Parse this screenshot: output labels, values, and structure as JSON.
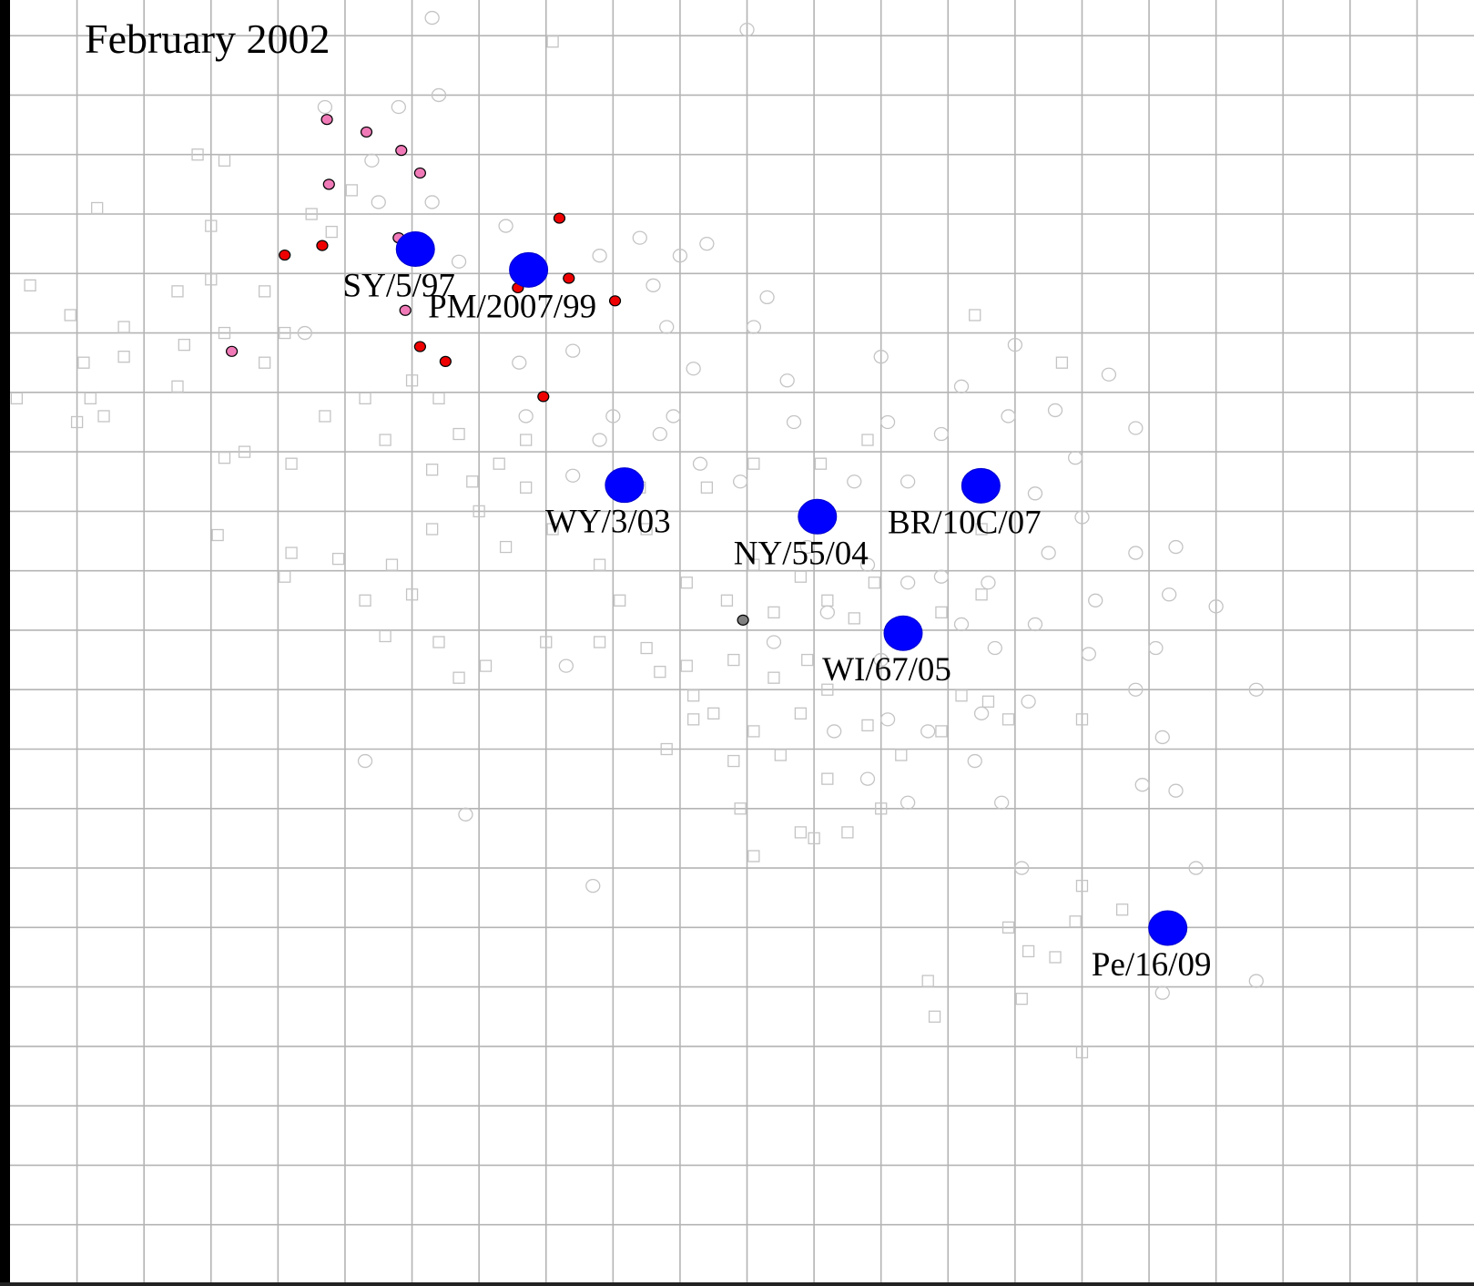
{
  "chart_data": {
    "type": "scatter",
    "title": "February 2002",
    "xlim": [
      0,
      21.85
    ],
    "ylim": [
      0,
      21.6
    ],
    "xticks": [
      1,
      2,
      3,
      4,
      5,
      6,
      7,
      8,
      9,
      10,
      11,
      12,
      13,
      14,
      15,
      16,
      17,
      18,
      19,
      20,
      21
    ],
    "yticks": [
      1,
      2,
      3,
      4,
      5,
      6,
      7,
      8,
      9,
      10,
      11,
      12,
      13,
      14,
      15,
      16,
      17,
      18,
      19,
      20,
      21
    ],
    "grid": true,
    "series": [
      {
        "marker": "square",
        "color": "#c4c4c4",
        "filled": false,
        "x": [
          8.1,
          2.8,
          3.2,
          1.3,
          3.0,
          4.8,
          5.1,
          4.5,
          3.0,
          2.5,
          3.8,
          0.3,
          0.9,
          1.7,
          1.1,
          1.7,
          2.6,
          3.2,
          4.1,
          3.8,
          2.5,
          0.1,
          1.2,
          1.0,
          1.4,
          3.2,
          3.5,
          4.2,
          4.7,
          5.3,
          6.0,
          6.4,
          5.6,
          6.3,
          6.7,
          7.3,
          7.7,
          7.0,
          7.4,
          8.1,
          8.8,
          9.5,
          10.1,
          10.7,
          11.1,
          11.4,
          11.8,
          12.2,
          12.6,
          12.9,
          11.9,
          11.4,
          10.8,
          10.2,
          9.7,
          10.5,
          11.1,
          11.5,
          10.8,
          9.8,
          11.8,
          12.2,
          12.8,
          13.3,
          13.9,
          14.2,
          14.6,
          14.5,
          13.9,
          14.5,
          14.4,
          15.7,
          12.8,
          12.1,
          11.1,
          10.4,
          9.4,
          7.7,
          6.9,
          6.3,
          5.7,
          5.3,
          5.6,
          6.4,
          6.7,
          7.1,
          8.8,
          9.1,
          8.0,
          3.1,
          4.2,
          4.1,
          4.9,
          6.0,
          10.9,
          11.1,
          11.8,
          12.0,
          12.5,
          12.2,
          13.0,
          16.0,
          14.9,
          16.0,
          16.6,
          15.9,
          14.9,
          15.6,
          15.2,
          13.7,
          15.1,
          13.8,
          16.0,
          10.2,
          10.1,
          9.5
        ],
        "y": [
          20.9,
          19.0,
          18.9,
          18.1,
          17.8,
          17.7,
          18.4,
          18.0,
          16.9,
          16.7,
          16.7,
          16.8,
          16.3,
          16.1,
          15.5,
          15.6,
          15.8,
          16.0,
          16.0,
          15.5,
          15.1,
          14.9,
          14.9,
          14.5,
          14.6,
          13.9,
          14.0,
          13.8,
          14.6,
          14.9,
          15.2,
          14.9,
          14.2,
          13.7,
          14.3,
          13.8,
          14.2,
          13.0,
          12.4,
          12.7,
          12.1,
          12.7,
          11.8,
          11.5,
          12.1,
          11.3,
          11.9,
          11.5,
          11.2,
          11.8,
          10.5,
          10.2,
          10.5,
          9.9,
          10.3,
          9.6,
          9.3,
          8.9,
          8.8,
          9.0,
          9.6,
          10.0,
          9.4,
          8.9,
          9.3,
          9.9,
          9.8,
          11.6,
          11.3,
          12.7,
          16.3,
          15.5,
          14.2,
          13.8,
          13.8,
          13.4,
          13.4,
          13.4,
          13.5,
          12.7,
          12.1,
          11.5,
          10.9,
          10.8,
          10.2,
          10.4,
          10.8,
          11.5,
          10.8,
          12.6,
          12.3,
          11.9,
          12.2,
          11.6,
          8.0,
          7.2,
          7.6,
          7.5,
          7.6,
          8.5,
          8.0,
          9.5,
          9.5,
          6.7,
          6.3,
          6.1,
          6.0,
          5.5,
          5.6,
          5.1,
          4.8,
          4.5,
          3.9,
          9.5,
          10.4,
          10.7
        ]
      },
      {
        "marker": "circle",
        "color": "#c4c4c4",
        "filled": false,
        "x": [
          6.3,
          11.0,
          6.4,
          4.7,
          5.8,
          5.4,
          5.5,
          6.3,
          7.4,
          6.7,
          8.8,
          9.4,
          10.0,
          10.4,
          9.6,
          11.3,
          9.8,
          11.1,
          8.4,
          10.2,
          7.6,
          11.6,
          13.0,
          15.0,
          16.4,
          14.2,
          11.7,
          13.1,
          13.9,
          14.9,
          15.6,
          16.8,
          15.9,
          15.3,
          16.0,
          15.5,
          16.8,
          17.4,
          17.3,
          18.0,
          16.2,
          15.3,
          16.1,
          17.1,
          16.8,
          18.6,
          17.2,
          16.9,
          17.4,
          17.7,
          18.6,
          17.2,
          15.1,
          13.4,
          12.6,
          9.9,
          8.8,
          8.4,
          8.3,
          5.3,
          6.8,
          8.7,
          13.4,
          14.8,
          14.4,
          12.8,
          13.7,
          14.5,
          15.2,
          13.1,
          12.3,
          14.7,
          14.2,
          13.4,
          12.8,
          13.9,
          11.9,
          10.9,
          10.3,
          9.7,
          4.4,
          7.7,
          9.0,
          14.6,
          13.0,
          12.2,
          11.4
        ],
        "y": [
          21.3,
          21.1,
          20.0,
          19.8,
          19.8,
          18.9,
          18.2,
          18.2,
          17.8,
          17.2,
          17.3,
          17.6,
          17.3,
          17.5,
          16.8,
          16.6,
          16.1,
          16.1,
          15.7,
          15.4,
          15.5,
          15.2,
          15.6,
          15.8,
          15.3,
          15.1,
          14.5,
          14.5,
          14.3,
          14.6,
          14.7,
          14.4,
          13.9,
          13.3,
          12.9,
          12.3,
          12.3,
          12.4,
          11.6,
          11.4,
          11.5,
          11.1,
          10.6,
          10.7,
          10.0,
          10.0,
          9.2,
          8.4,
          8.3,
          7.0,
          5.1,
          4.9,
          7.0,
          13.5,
          13.5,
          14.6,
          14.2,
          13.6,
          10.4,
          8.8,
          7.9,
          6.7,
          8.1,
          8.1,
          8.8,
          8.5,
          9.3,
          9.6,
          9.8,
          9.5,
          9.3,
          10.7,
          11.1,
          11.8,
          12.1,
          11.9,
          12.4,
          13.5,
          13.8,
          14.3,
          16.0,
          14.6,
          14.6,
          11.8,
          10.5,
          11.3,
          10.8
        ]
      },
      {
        "marker": "dot",
        "color": "#ee0000",
        "filled": true,
        "x": [
          4.1,
          4.66,
          8.2,
          8.34,
          7.58,
          9.03,
          6.12,
          6.5,
          7.96
        ],
        "y": [
          17.31,
          17.47,
          17.93,
          16.92,
          16.76,
          16.54,
          15.77,
          15.52,
          14.93
        ]
      },
      {
        "marker": "dot",
        "color": "#f07ab8",
        "filled": true,
        "x": [
          4.73,
          5.32,
          5.84,
          6.12,
          4.76,
          5.8,
          5.9,
          3.31
        ],
        "y": [
          19.59,
          19.38,
          19.07,
          18.69,
          18.5,
          17.6,
          16.38,
          15.69
        ]
      },
      {
        "marker": "dot",
        "color": "#808080",
        "filled": true,
        "x": [
          10.94
        ],
        "y": [
          11.17
        ]
      },
      {
        "marker": "big",
        "color": "#0000ff",
        "filled": true,
        "labels": [
          "SY/5/97",
          "PM/2007/99",
          "WY/3/03",
          "NY/55/04",
          "BR/10C/07",
          "WI/67/05",
          "Pe/16/09"
        ],
        "x": [
          6.05,
          7.74,
          9.17,
          12.05,
          14.49,
          13.33,
          17.28
        ],
        "y": [
          17.41,
          17.06,
          13.44,
          12.91,
          13.43,
          10.95,
          5.99
        ]
      }
    ]
  }
}
